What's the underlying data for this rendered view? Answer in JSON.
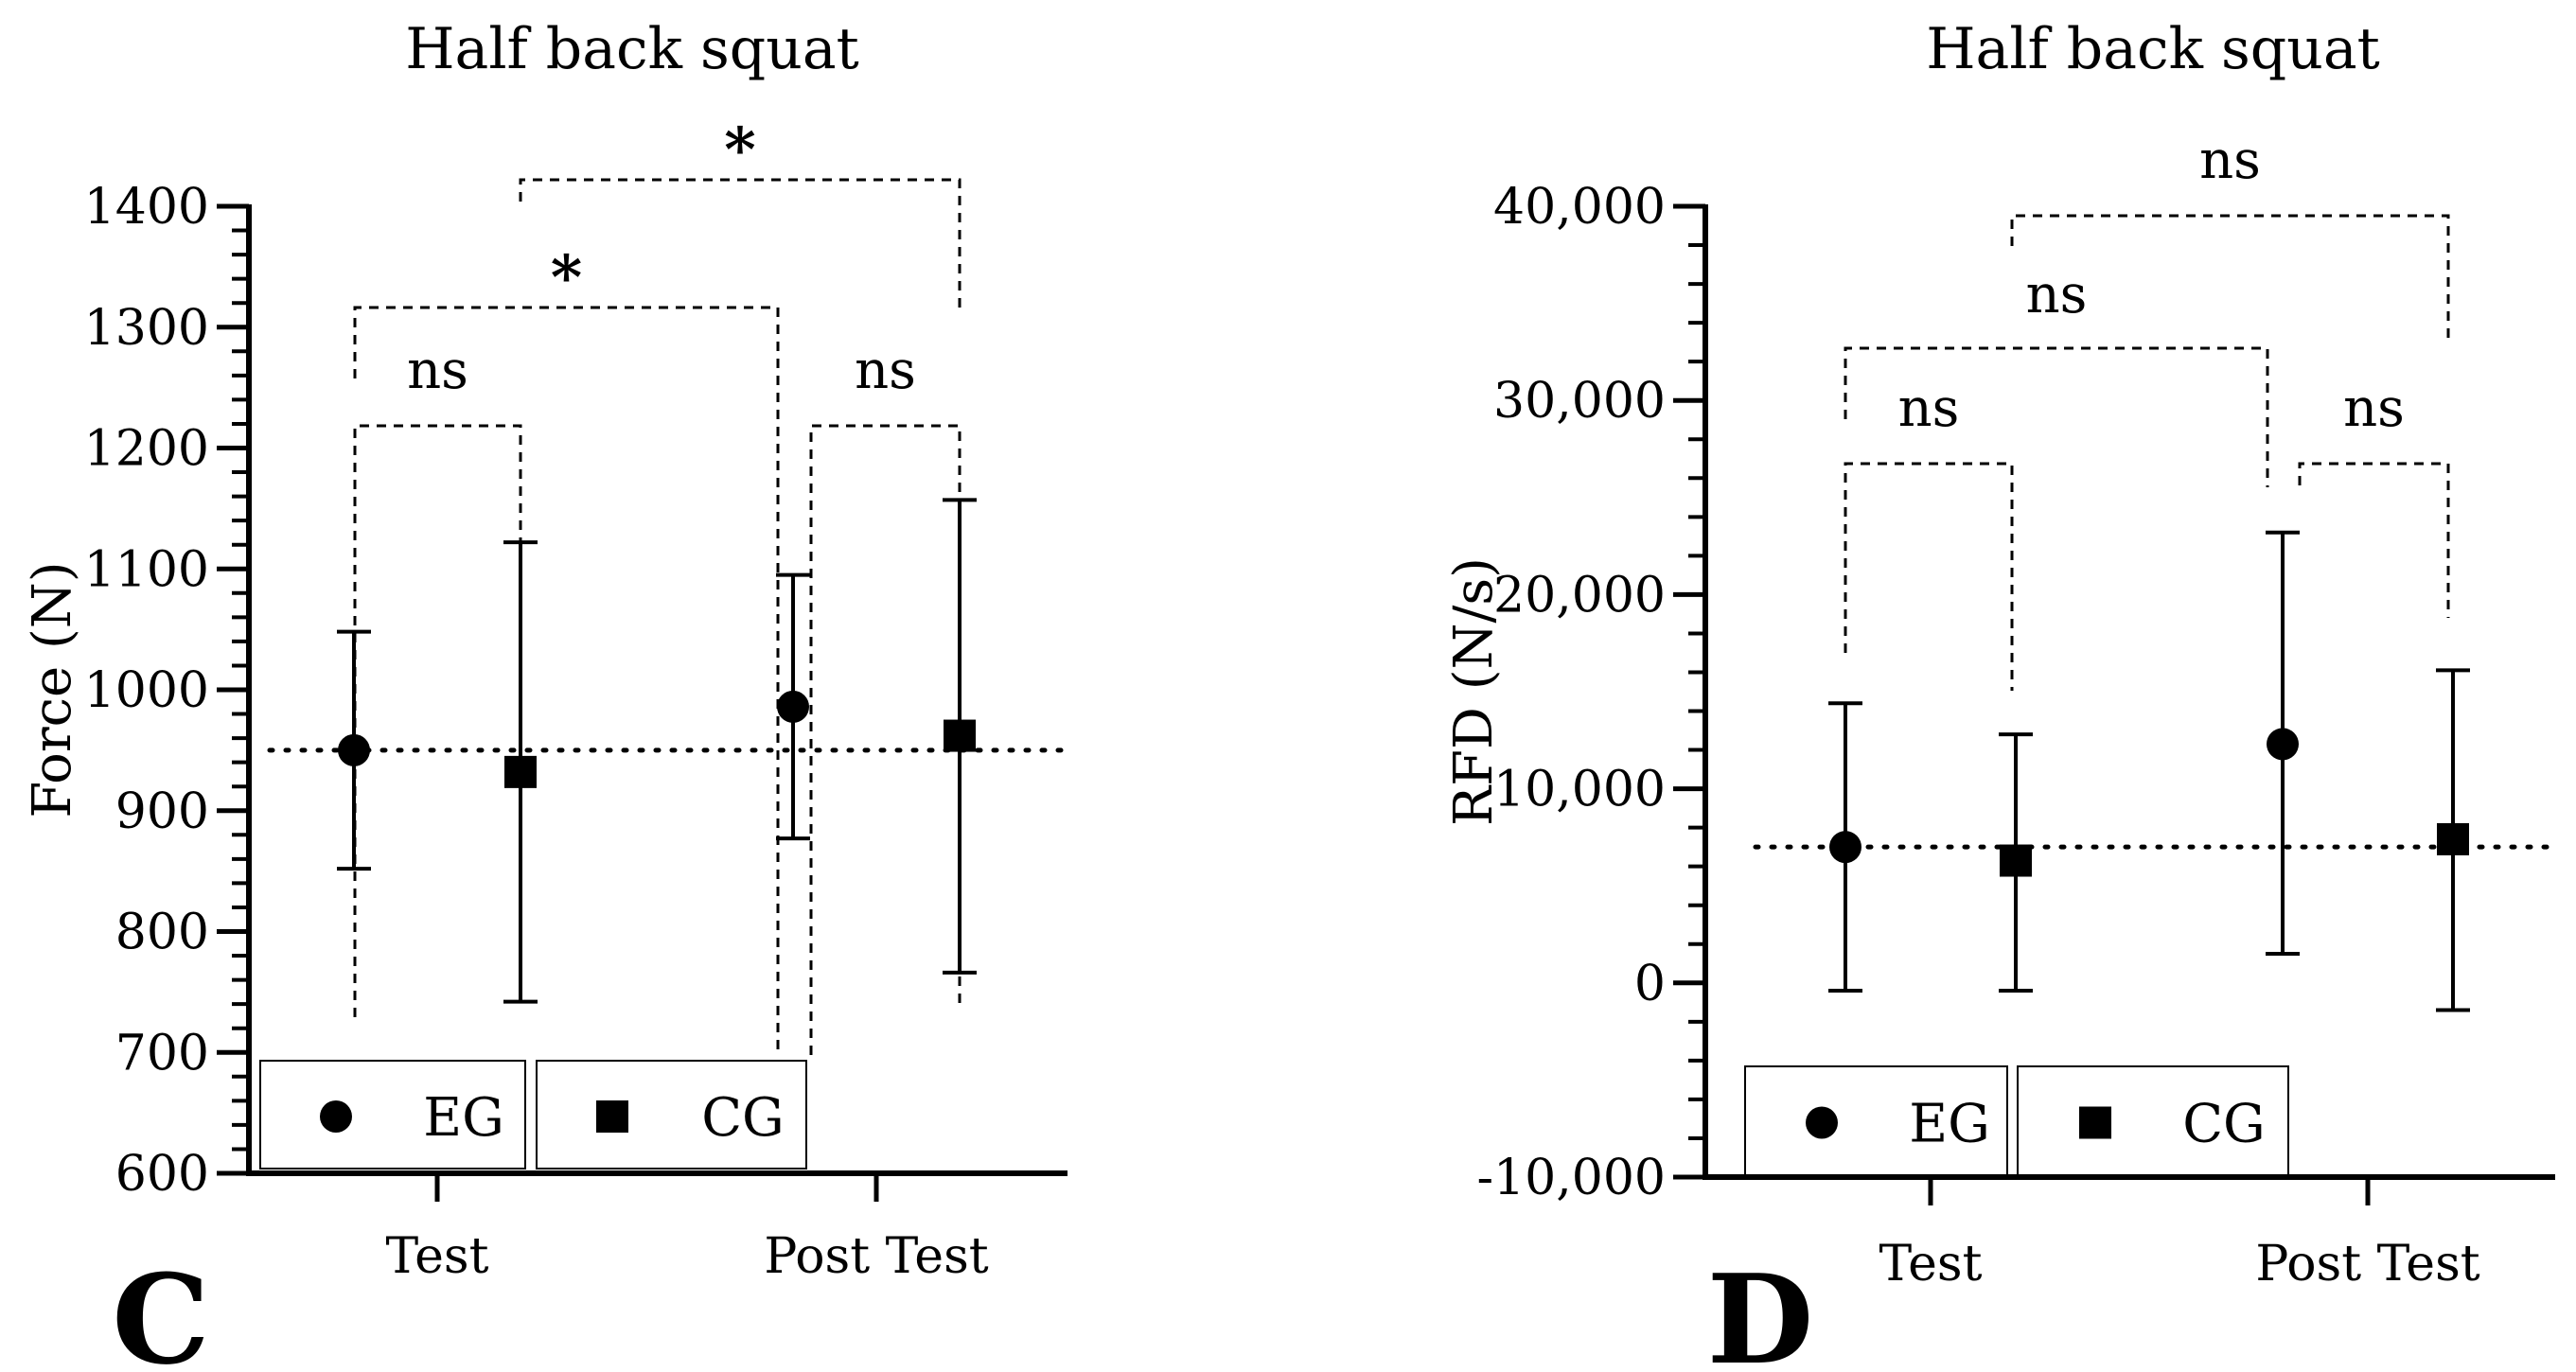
{
  "chart_data": [
    {
      "type": "scatter",
      "panel_letter": "C",
      "title": "Half back squat",
      "xlabel": "",
      "ylabel": "Force (N)",
      "categories": [
        "Test",
        "Post Test"
      ],
      "ylim": [
        600,
        1400
      ],
      "yticks": [
        600,
        700,
        800,
        900,
        1000,
        1100,
        1200,
        1300,
        1400
      ],
      "ytick_labels": [
        "600",
        "700",
        "800",
        "900",
        "1000",
        "1100",
        "1200",
        "1300",
        "1400"
      ],
      "reference_line": 950,
      "series": [
        {
          "name": "EG",
          "marker": "circle",
          "values": [
            950,
            986
          ],
          "lower": [
            852,
            877
          ],
          "upper": [
            1048,
            1095
          ]
        },
        {
          "name": "CG",
          "marker": "square",
          "values": [
            932,
            962
          ],
          "lower": [
            742,
            766
          ],
          "upper": [
            1122,
            1157
          ]
        }
      ],
      "comparisons": [
        {
          "label": "ns",
          "from": "Test EG",
          "to": "Test CG"
        },
        {
          "label": "ns",
          "from": "Post Test EG",
          "to": "Post Test CG"
        },
        {
          "label": "*",
          "from": "Test EG",
          "to": "Post Test EG"
        },
        {
          "label": "*",
          "from": "Test CG",
          "to": "Post Test CG"
        }
      ],
      "legend": [
        "EG",
        "CG"
      ]
    },
    {
      "type": "scatter",
      "panel_letter": "D",
      "title": "Half back squat",
      "xlabel": "",
      "ylabel": "RFD (N/s)",
      "categories": [
        "Test",
        "Post Test"
      ],
      "ylim": [
        -10000,
        40000
      ],
      "yticks": [
        -10000,
        0,
        10000,
        20000,
        30000,
        40000
      ],
      "ytick_labels": [
        "-10,000",
        "0",
        "10,000",
        "20,000",
        "30,000",
        "40,000"
      ],
      "reference_line": 7000,
      "series": [
        {
          "name": "EG",
          "marker": "circle",
          "values": [
            7000,
            12300
          ],
          "lower": [
            -400,
            1500
          ],
          "upper": [
            14400,
            23200
          ]
        },
        {
          "name": "CG",
          "marker": "square",
          "values": [
            6300,
            7400
          ],
          "lower": [
            -400,
            -1400
          ],
          "upper": [
            12800,
            16100
          ]
        }
      ],
      "comparisons": [
        {
          "label": "ns",
          "from": "Test EG",
          "to": "Test CG"
        },
        {
          "label": "ns",
          "from": "Post Test EG",
          "to": "Post Test CG"
        },
        {
          "label": "ns",
          "from": "Test EG",
          "to": "Post Test EG"
        },
        {
          "label": "ns",
          "from": "Test CG",
          "to": "Post Test CG"
        }
      ],
      "legend": [
        "EG",
        "CG"
      ]
    }
  ]
}
